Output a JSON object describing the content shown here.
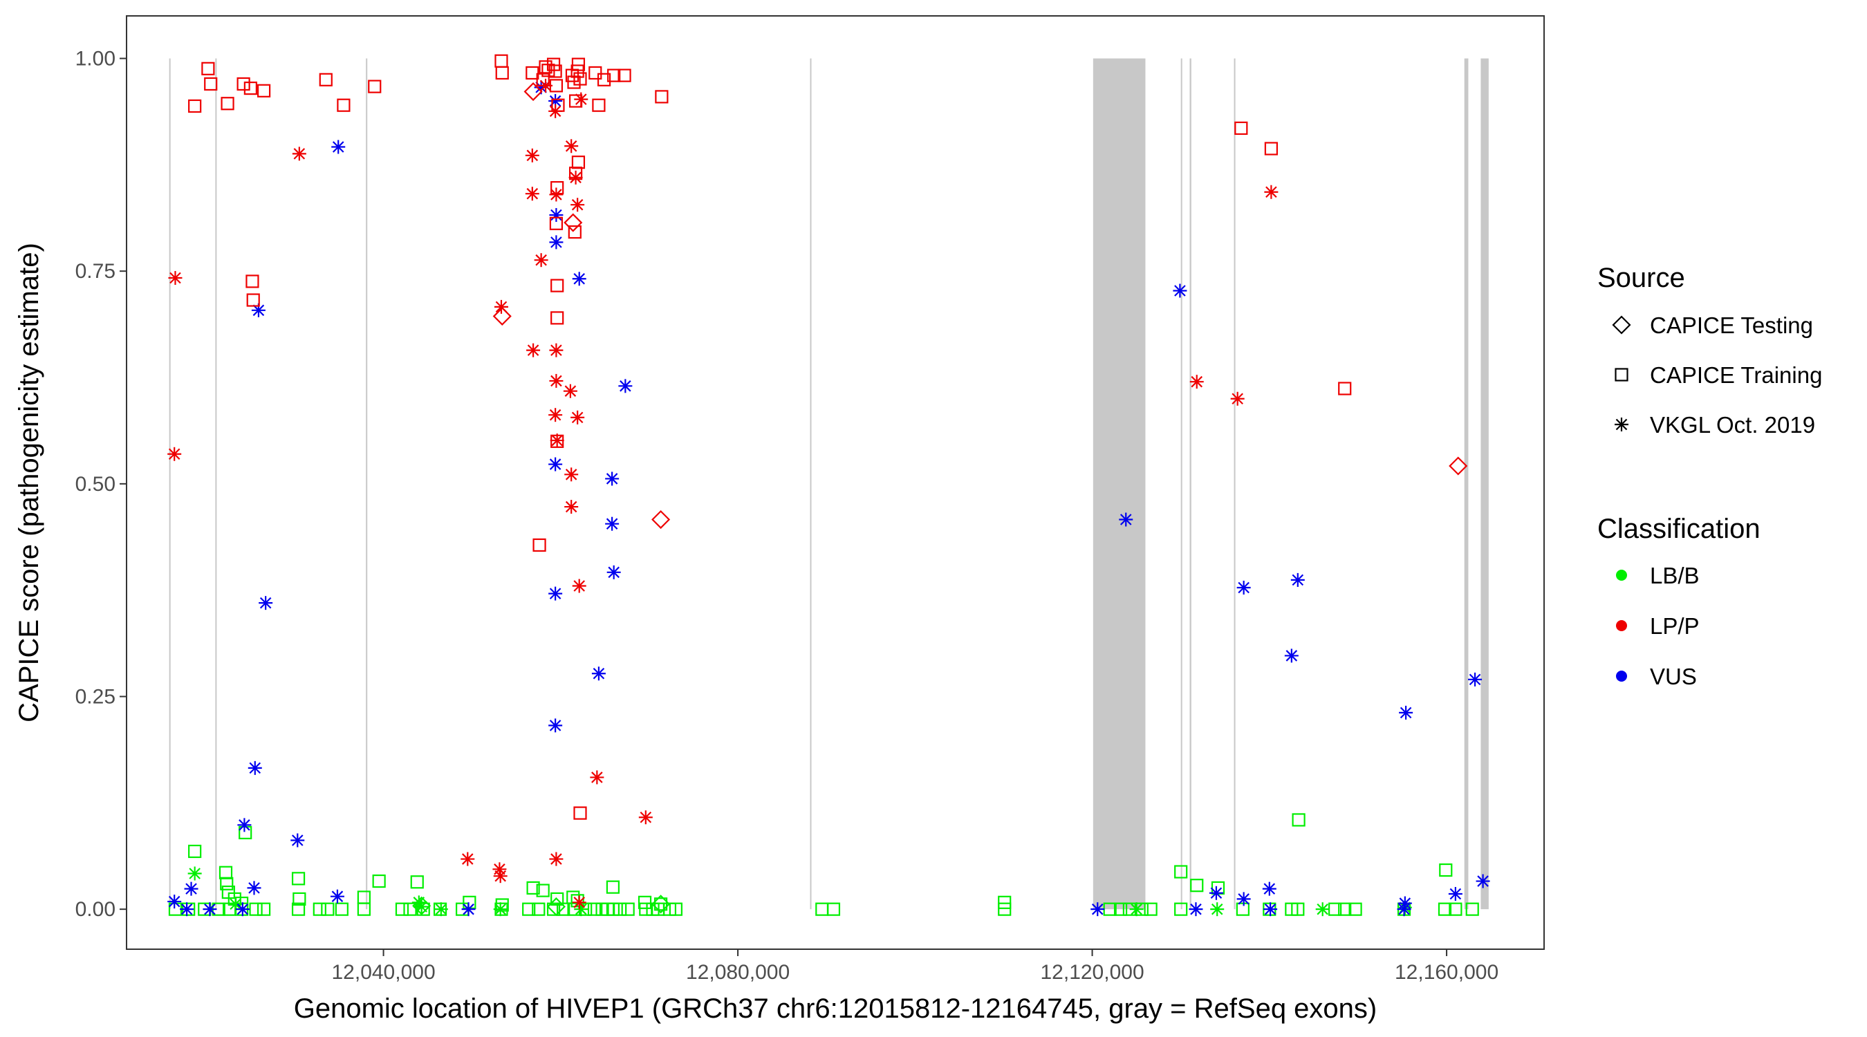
{
  "chart_data": {
    "type": "scatter",
    "title": "",
    "xlabel": "Genomic location of HIVEP1 (GRCh37 chr6:12015812-12164745, gray = RefSeq exons)",
    "ylabel": "CAPICE score (pathogenicity estimate)",
    "xlim": [
      12011000,
      12171000
    ],
    "ylim": [
      -0.047,
      1.05
    ],
    "x_ticks": [
      12040000,
      12080000,
      12120000,
      12160000
    ],
    "x_tick_labels": [
      "12,040,000",
      "12,080,000",
      "12,120,000",
      "12,160,000"
    ],
    "y_ticks": [
      0.0,
      0.25,
      0.5,
      0.75,
      1.0
    ],
    "y_tick_labels": [
      "0.00",
      "0.25",
      "0.50",
      "0.75",
      "1.00"
    ],
    "grid": false,
    "exons": [
      [
        12015812,
        12015860
      ],
      [
        12021020,
        12021080
      ],
      [
        12038020,
        12038080
      ],
      [
        12088150,
        12088200
      ],
      [
        12120100,
        12126000
      ],
      [
        12130000,
        12130150
      ],
      [
        12131000,
        12131180
      ],
      [
        12136000,
        12136080
      ],
      [
        12162000,
        12162450
      ],
      [
        12163850,
        12164745
      ]
    ],
    "legend": {
      "source": {
        "title": "Source",
        "entries": [
          {
            "label": "CAPICE Testing",
            "shape": "diamond"
          },
          {
            "label": "CAPICE Training",
            "shape": "square"
          },
          {
            "label": "VKGL Oct. 2019",
            "shape": "star"
          }
        ]
      },
      "classification": {
        "title": "Classification",
        "entries": [
          {
            "label": "LB/B",
            "color": "#00ee00"
          },
          {
            "label": "LP/P",
            "color": "#ee0000"
          },
          {
            "label": "VUS",
            "color": "#0000ee"
          }
        ]
      }
    },
    "series": [
      {
        "name": "LP/P · CAPICE Training",
        "class": "LP/P",
        "source": "CAPICE Training",
        "points": [
          [
            12020200,
            0.988
          ],
          [
            12018700,
            0.944
          ],
          [
            12020500,
            0.97
          ],
          [
            12022400,
            0.947
          ],
          [
            12024200,
            0.97
          ],
          [
            12025000,
            0.965
          ],
          [
            12026500,
            0.962
          ],
          [
            12033500,
            0.975
          ],
          [
            12035500,
            0.945
          ],
          [
            12039000,
            0.967
          ],
          [
            12025200,
            0.738
          ],
          [
            12025300,
            0.716
          ],
          [
            12053300,
            0.997
          ],
          [
            12053400,
            0.983
          ],
          [
            12056800,
            0.983
          ],
          [
            12058000,
            0.975
          ],
          [
            12058300,
            0.99
          ],
          [
            12058600,
            0.986
          ],
          [
            12059200,
            0.993
          ],
          [
            12059400,
            0.985
          ],
          [
            12059500,
            0.968
          ],
          [
            12059700,
            0.945
          ],
          [
            12061300,
            0.98
          ],
          [
            12061500,
            0.972
          ],
          [
            12061700,
            0.95
          ],
          [
            12061900,
            0.985
          ],
          [
            12062000,
            0.993
          ],
          [
            12062200,
            0.976
          ],
          [
            12063900,
            0.983
          ],
          [
            12064300,
            0.945
          ],
          [
            12064900,
            0.975
          ],
          [
            12066000,
            0.98
          ],
          [
            12067200,
            0.98
          ],
          [
            12071400,
            0.955
          ],
          [
            12062000,
            0.878
          ],
          [
            12061700,
            0.865
          ],
          [
            12059600,
            0.848
          ],
          [
            12059500,
            0.806
          ],
          [
            12061600,
            0.796
          ],
          [
            12059600,
            0.733
          ],
          [
            12059600,
            0.695
          ],
          [
            12059600,
            0.55
          ],
          [
            12057600,
            0.428
          ],
          [
            12062200,
            0.113
          ],
          [
            12136800,
            0.918
          ],
          [
            12140200,
            0.894
          ],
          [
            12148500,
            0.612
          ]
        ]
      },
      {
        "name": "LP/P · VKGL Oct. 2019",
        "class": "LP/P",
        "source": "VKGL Oct. 2019",
        "points": [
          [
            12016500,
            0.742
          ],
          [
            12016400,
            0.535
          ],
          [
            12030500,
            0.888
          ],
          [
            12056800,
            0.886
          ],
          [
            12061200,
            0.897
          ],
          [
            12061700,
            0.86
          ],
          [
            12061900,
            0.828
          ],
          [
            12056800,
            0.841
          ],
          [
            12059500,
            0.84
          ],
          [
            12057800,
            0.763
          ],
          [
            12053300,
            0.708
          ],
          [
            12056900,
            0.657
          ],
          [
            12059500,
            0.657
          ],
          [
            12059500,
            0.621
          ],
          [
            12061100,
            0.609
          ],
          [
            12059400,
            0.581
          ],
          [
            12061900,
            0.578
          ],
          [
            12059600,
            0.551
          ],
          [
            12061200,
            0.511
          ],
          [
            12061200,
            0.473
          ],
          [
            12062100,
            0.38
          ],
          [
            12064100,
            0.155
          ],
          [
            12069600,
            0.108
          ],
          [
            12049500,
            0.059
          ],
          [
            12053100,
            0.047
          ],
          [
            12053200,
            0.039
          ],
          [
            12059500,
            0.059
          ],
          [
            12062100,
            0.008
          ],
          [
            12058300,
            0.968
          ],
          [
            12059400,
            0.938
          ],
          [
            12062300,
            0.952
          ],
          [
            12131800,
            0.62
          ],
          [
            12136400,
            0.6
          ],
          [
            12140200,
            0.843
          ]
        ]
      },
      {
        "name": "LP/P · CAPICE Testing",
        "class": "LP/P",
        "source": "CAPICE Testing",
        "points": [
          [
            12056900,
            0.961
          ],
          [
            12053400,
            0.697
          ],
          [
            12061400,
            0.807
          ],
          [
            12071300,
            0.458
          ],
          [
            12161300,
            0.521
          ]
        ]
      },
      {
        "name": "VUS · VKGL Oct. 2019",
        "class": "VUS",
        "source": "VKGL Oct. 2019",
        "points": [
          [
            12034900,
            0.896
          ],
          [
            12025900,
            0.704
          ],
          [
            12026700,
            0.36
          ],
          [
            12025500,
            0.166
          ],
          [
            12024300,
            0.099
          ],
          [
            12025400,
            0.025
          ],
          [
            12030300,
            0.081
          ],
          [
            12034800,
            0.015
          ],
          [
            12016400,
            0.009
          ],
          [
            12018300,
            0.024
          ],
          [
            12057800,
            0.966
          ],
          [
            12059400,
            0.95
          ],
          [
            12059500,
            0.816
          ],
          [
            12059500,
            0.784
          ],
          [
            12062100,
            0.741
          ],
          [
            12067300,
            0.615
          ],
          [
            12059400,
            0.523
          ],
          [
            12065800,
            0.506
          ],
          [
            12065800,
            0.453
          ],
          [
            12066000,
            0.396
          ],
          [
            12059400,
            0.371
          ],
          [
            12064300,
            0.277
          ],
          [
            12059400,
            0.216
          ],
          [
            12129900,
            0.727
          ],
          [
            12123800,
            0.458
          ],
          [
            12137100,
            0.378
          ],
          [
            12143200,
            0.387
          ],
          [
            12142500,
            0.298
          ],
          [
            12155400,
            0.231
          ],
          [
            12163200,
            0.27
          ],
          [
            12134000,
            0.019
          ],
          [
            12137100,
            0.012
          ],
          [
            12140000,
            0.024
          ],
          [
            12155300,
            0.007
          ],
          [
            12161000,
            0.018
          ],
          [
            12164100,
            0.033
          ],
          [
            12017800,
            0.0
          ],
          [
            12020400,
            0.0
          ],
          [
            12024100,
            0.0
          ],
          [
            12049600,
            0.0
          ],
          [
            12120600,
            0.0
          ],
          [
            12131700,
            0.0
          ],
          [
            12140100,
            0.0
          ],
          [
            12155200,
            0.0
          ]
        ]
      },
      {
        "name": "LB/B · CAPICE Training",
        "class": "LB/B",
        "source": "CAPICE Training",
        "points": [
          [
            12018700,
            0.068
          ],
          [
            12024400,
            0.09
          ],
          [
            12022200,
            0.043
          ],
          [
            12022300,
            0.03
          ],
          [
            12022500,
            0.02
          ],
          [
            12023200,
            0.012
          ],
          [
            12024000,
            0.007
          ],
          [
            12030400,
            0.036
          ],
          [
            12030500,
            0.012
          ],
          [
            12037800,
            0.014
          ],
          [
            12039500,
            0.033
          ],
          [
            12043800,
            0.032
          ],
          [
            12049700,
            0.008
          ],
          [
            12053400,
            0.005
          ],
          [
            12056900,
            0.025
          ],
          [
            12058000,
            0.022
          ],
          [
            12059600,
            0.012
          ],
          [
            12061400,
            0.014
          ],
          [
            12061900,
            0.01
          ],
          [
            12065900,
            0.026
          ],
          [
            12069500,
            0.008
          ],
          [
            12071300,
            0.006
          ],
          [
            12110100,
            0.008
          ],
          [
            12130000,
            0.044
          ],
          [
            12131800,
            0.028
          ],
          [
            12134200,
            0.025
          ],
          [
            12143300,
            0.105
          ],
          [
            12159900,
            0.046
          ],
          [
            12016500,
            0.0
          ],
          [
            12018000,
            0.0
          ],
          [
            12019800,
            0.0
          ],
          [
            12021400,
            0.0
          ],
          [
            12022600,
            0.0
          ],
          [
            12024000,
            0.0
          ],
          [
            12025600,
            0.0
          ],
          [
            12026500,
            0.0
          ],
          [
            12030400,
            0.0
          ],
          [
            12032800,
            0.0
          ],
          [
            12033700,
            0.0
          ],
          [
            12035300,
            0.0
          ],
          [
            12037800,
            0.0
          ],
          [
            12042100,
            0.0
          ],
          [
            12043000,
            0.0
          ],
          [
            12044500,
            0.0
          ],
          [
            12046400,
            0.0
          ],
          [
            12048900,
            0.0
          ],
          [
            12053300,
            0.0
          ],
          [
            12056400,
            0.0
          ],
          [
            12057500,
            0.0
          ],
          [
            12059200,
            0.0
          ],
          [
            12060300,
            0.0
          ],
          [
            12061500,
            0.0
          ],
          [
            12062800,
            0.0
          ],
          [
            12063800,
            0.0
          ],
          [
            12064700,
            0.0
          ],
          [
            12065300,
            0.0
          ],
          [
            12065900,
            0.0
          ],
          [
            12066700,
            0.0
          ],
          [
            12067600,
            0.0
          ],
          [
            12069600,
            0.0
          ],
          [
            12070400,
            0.0
          ],
          [
            12071000,
            0.0
          ],
          [
            12072300,
            0.0
          ],
          [
            12073000,
            0.0
          ],
          [
            12089500,
            0.0
          ],
          [
            12090800,
            0.0
          ],
          [
            12110100,
            0.0
          ],
          [
            12122000,
            0.0
          ],
          [
            12123200,
            0.0
          ],
          [
            12124200,
            0.0
          ],
          [
            12125600,
            0.0
          ],
          [
            12126600,
            0.0
          ],
          [
            12130000,
            0.0
          ],
          [
            12137000,
            0.0
          ],
          [
            12140000,
            0.0
          ],
          [
            12142500,
            0.0
          ],
          [
            12143200,
            0.0
          ],
          [
            12147400,
            0.0
          ],
          [
            12148500,
            0.0
          ],
          [
            12149700,
            0.0
          ],
          [
            12155200,
            0.0
          ],
          [
            12159800,
            0.0
          ],
          [
            12161000,
            0.0
          ],
          [
            12162900,
            0.0
          ]
        ]
      },
      {
        "name": "LB/B · VKGL Oct. 2019",
        "class": "LB/B",
        "source": "VKGL Oct. 2019",
        "points": [
          [
            12018700,
            0.042
          ],
          [
            12044000,
            0.008
          ],
          [
            12044300,
            0.003
          ],
          [
            12023300,
            0.006
          ],
          [
            12046500,
            0.0
          ],
          [
            12053200,
            0.0
          ],
          [
            12062300,
            0.0
          ],
          [
            12125000,
            0.0
          ],
          [
            12134100,
            0.0
          ],
          [
            12146000,
            0.0
          ],
          [
            12155300,
            0.002
          ]
        ]
      },
      {
        "name": "LB/B · CAPICE Testing",
        "class": "LB/B",
        "source": "CAPICE Testing",
        "points": [
          [
            12044300,
            0.004
          ],
          [
            12059500,
            0.003
          ],
          [
            12071300,
            0.006
          ]
        ]
      }
    ]
  }
}
